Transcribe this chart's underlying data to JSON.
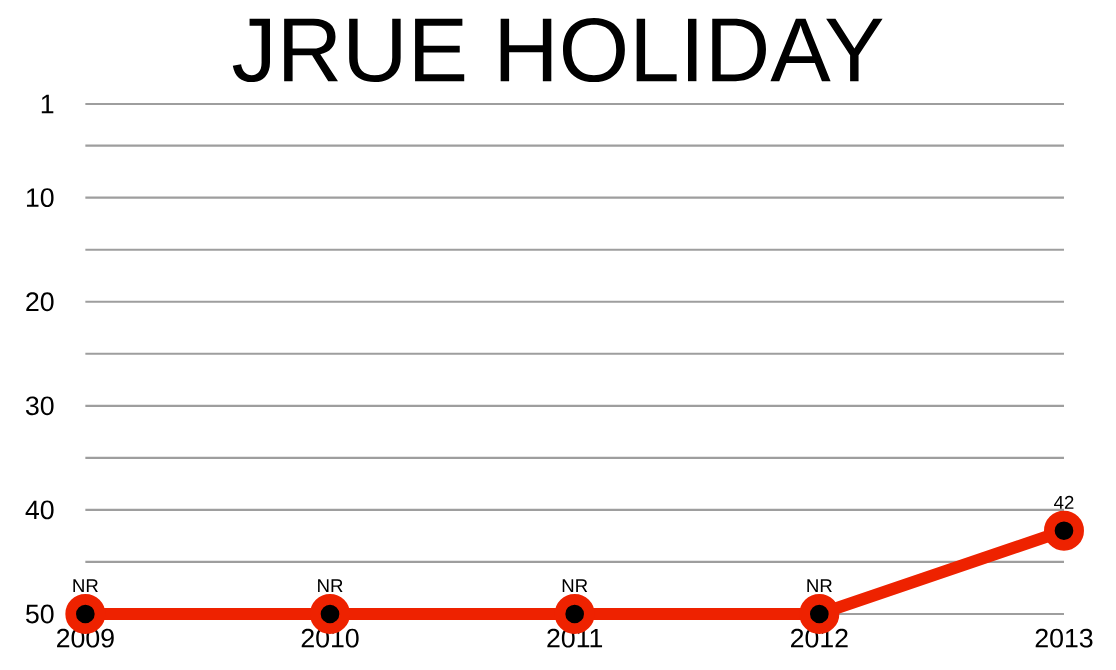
{
  "chart_data": {
    "type": "line",
    "title": "JRUE HOLIDAY",
    "categories": [
      "2009",
      "2010",
      "2011",
      "2012",
      "2013"
    ],
    "series": [
      {
        "color": "#ee2200",
        "values": [
          50,
          50,
          50,
          50,
          42
        ],
        "value_labels": [
          "NR",
          "NR",
          "NR",
          "NR",
          "42"
        ]
      }
    ],
    "ylim": [
      50,
      1
    ],
    "yticks": [
      1,
      {
        "value": 5,
        "label": null
      },
      10,
      {
        "value": 15,
        "label": null
      },
      20,
      {
        "value": 25,
        "label": null
      },
      30,
      {
        "value": 35,
        "label": null
      },
      40,
      {
        "value": 45,
        "label": null
      },
      50
    ],
    "grid": "y",
    "marker": "circle",
    "line_style": "solid"
  }
}
